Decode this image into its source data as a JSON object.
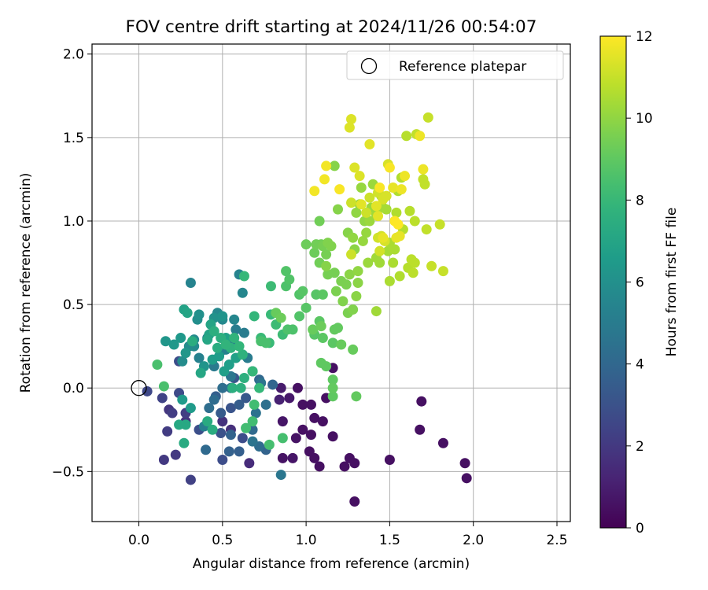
{
  "chart_data": {
    "type": "scatter",
    "title": "FOV centre drift starting at 2024/11/26 00:54:07",
    "xlabel": "Angular distance from reference (arcmin)",
    "ylabel": "Rotation from reference (arcmin)",
    "xlim": [
      -0.28,
      2.58
    ],
    "ylim": [
      -0.8,
      2.06
    ],
    "xticks": [
      0.0,
      0.5,
      1.0,
      1.5,
      2.0,
      2.5
    ],
    "xtick_labels": [
      "0.0",
      "0.5",
      "1.0",
      "1.5",
      "2.0",
      "2.5"
    ],
    "yticks": [
      -0.5,
      0.0,
      0.5,
      1.0,
      1.5,
      2.0
    ],
    "ytick_labels": [
      "−0.5",
      "0.0",
      "0.5",
      "1.0",
      "1.5",
      "2.0"
    ],
    "grid": true,
    "legend": {
      "position": "top-right",
      "entries": [
        "Reference platepar"
      ]
    },
    "reference_point": {
      "x": 0.0,
      "y": 0.0,
      "label": "Reference platepar"
    },
    "colorbar": {
      "label": "Hours from first FF file",
      "colormap": "viridis",
      "range": [
        0,
        12
      ],
      "ticks": [
        0,
        2,
        4,
        6,
        8,
        10,
        12
      ],
      "tick_labels": [
        "0",
        "2",
        "4",
        "6",
        "8",
        "10",
        "12"
      ]
    },
    "color_variable": "hours_from_first_ff_file",
    "points": [
      [
        0.95,
        0.0,
        0.5
      ],
      [
        0.98,
        -0.1,
        0.5
      ],
      [
        1.03,
        -0.1,
        0.5
      ],
      [
        1.05,
        -0.18,
        0.5
      ],
      [
        1.1,
        -0.2,
        0.5
      ],
      [
        1.12,
        -0.06,
        0.5
      ],
      [
        1.16,
        0.12,
        0.5
      ],
      [
        0.98,
        -0.25,
        0.5
      ],
      [
        1.03,
        -0.28,
        0.5
      ],
      [
        1.16,
        -0.29,
        0.5
      ],
      [
        1.02,
        -0.38,
        0.5
      ],
      [
        1.05,
        -0.42,
        0.5
      ],
      [
        1.08,
        -0.47,
        0.5
      ],
      [
        1.23,
        -0.47,
        0.5
      ],
      [
        1.26,
        -0.42,
        0.5
      ],
      [
        1.29,
        -0.45,
        0.5
      ],
      [
        1.29,
        -0.68,
        0.5
      ],
      [
        1.5,
        -0.43,
        0.5
      ],
      [
        1.68,
        -0.25,
        0.5
      ],
      [
        1.69,
        -0.08,
        0.5
      ],
      [
        1.82,
        -0.33,
        0.5
      ],
      [
        1.95,
        -0.45,
        0.5
      ],
      [
        1.96,
        -0.54,
        0.5
      ],
      [
        0.86,
        -0.42,
        0.6
      ],
      [
        0.94,
        -0.3,
        0.6
      ],
      [
        0.86,
        -0.2,
        0.7
      ],
      [
        0.92,
        -0.42,
        0.7
      ],
      [
        0.9,
        -0.06,
        0.8
      ],
      [
        0.85,
        0.0,
        0.9
      ],
      [
        0.84,
        -0.07,
        1.1
      ],
      [
        0.66,
        -0.45,
        1.5
      ],
      [
        0.55,
        -0.25,
        1.6
      ],
      [
        0.5,
        -0.2,
        1.7
      ],
      [
        0.28,
        -0.2,
        1.8
      ],
      [
        0.18,
        -0.13,
        1.9
      ],
      [
        0.15,
        -0.43,
        2.0
      ],
      [
        0.22,
        -0.4,
        2.0
      ],
      [
        0.17,
        -0.26,
        2.1
      ],
      [
        0.2,
        -0.15,
        2.2
      ],
      [
        0.28,
        -0.15,
        2.2
      ],
      [
        0.31,
        -0.55,
        2.3
      ],
      [
        0.14,
        -0.06,
        2.4
      ],
      [
        0.05,
        -0.02,
        2.6
      ],
      [
        0.24,
        -0.03,
        2.7
      ],
      [
        0.24,
        0.16,
        2.8
      ],
      [
        0.5,
        -0.43,
        2.8
      ],
      [
        0.62,
        -0.3,
        2.8
      ],
      [
        0.36,
        -0.25,
        2.9
      ],
      [
        0.49,
        -0.27,
        3.0
      ],
      [
        0.55,
        -0.12,
        3.1
      ],
      [
        0.57,
        0.06,
        3.2
      ],
      [
        0.64,
        -0.06,
        3.3
      ],
      [
        0.49,
        -0.15,
        3.4
      ],
      [
        0.6,
        -0.1,
        3.5
      ],
      [
        0.46,
        -0.05,
        3.6
      ],
      [
        0.6,
        -0.38,
        3.6
      ],
      [
        0.54,
        -0.38,
        3.7
      ],
      [
        0.55,
        -0.28,
        3.8
      ],
      [
        0.76,
        -0.37,
        3.8
      ],
      [
        0.8,
        0.02,
        3.9
      ],
      [
        0.72,
        0.05,
        4.0
      ],
      [
        0.4,
        -0.37,
        4.1
      ],
      [
        0.68,
        -0.25,
        4.1
      ],
      [
        0.72,
        -0.35,
        4.2
      ],
      [
        0.45,
        -0.07,
        4.2
      ],
      [
        0.42,
        -0.12,
        4.3
      ],
      [
        0.5,
        0.0,
        4.3
      ],
      [
        0.55,
        0.0,
        4.4
      ],
      [
        0.76,
        -0.1,
        4.4
      ],
      [
        0.7,
        -0.15,
        4.5
      ],
      [
        0.68,
        0.1,
        4.5
      ],
      [
        0.73,
        0.03,
        4.6
      ],
      [
        0.68,
        -0.32,
        4.6
      ],
      [
        0.85,
        -0.52,
        4.7
      ],
      [
        0.55,
        0.07,
        4.7
      ],
      [
        0.49,
        0.22,
        4.8
      ],
      [
        0.62,
        0.2,
        4.8
      ],
      [
        0.57,
        0.27,
        4.9
      ],
      [
        0.45,
        0.13,
        4.9
      ],
      [
        0.65,
        0.18,
        5.0
      ],
      [
        0.63,
        0.33,
        5.0
      ],
      [
        0.58,
        0.35,
        5.1
      ],
      [
        0.39,
        -0.23,
        5.2
      ],
      [
        0.41,
        0.3,
        5.2
      ],
      [
        0.36,
        0.18,
        5.3
      ],
      [
        0.52,
        0.23,
        5.3
      ],
      [
        0.31,
        0.63,
        5.4
      ],
      [
        0.6,
        0.68,
        5.4
      ],
      [
        0.62,
        0.57,
        5.5
      ],
      [
        0.57,
        0.41,
        5.5
      ],
      [
        0.5,
        0.41,
        5.6
      ],
      [
        0.47,
        0.45,
        5.6
      ],
      [
        0.33,
        0.29,
        5.7
      ],
      [
        0.33,
        0.25,
        5.7
      ],
      [
        0.3,
        0.25,
        5.8
      ],
      [
        0.26,
        0.16,
        5.8
      ],
      [
        0.35,
        0.41,
        5.9
      ],
      [
        0.36,
        0.44,
        6.0
      ],
      [
        0.45,
        0.42,
        6.1
      ],
      [
        0.5,
        0.43,
        6.2
      ],
      [
        0.39,
        0.13,
        6.2
      ],
      [
        0.28,
        0.21,
        6.3
      ],
      [
        0.16,
        0.28,
        6.3
      ],
      [
        0.25,
        0.3,
        6.4
      ],
      [
        0.21,
        0.26,
        6.4
      ],
      [
        0.26,
        -0.07,
        6.5
      ],
      [
        0.31,
        -0.12,
        6.5
      ],
      [
        0.44,
        0.17,
        6.6
      ],
      [
        0.48,
        0.19,
        6.6
      ],
      [
        0.51,
        0.1,
        6.7
      ],
      [
        0.54,
        0.14,
        6.7
      ],
      [
        0.58,
        0.18,
        6.8
      ],
      [
        0.52,
        0.3,
        6.8
      ],
      [
        0.42,
        0.32,
        6.9
      ],
      [
        0.27,
        0.47,
        6.9
      ],
      [
        0.29,
        0.45,
        7.0
      ],
      [
        0.43,
        0.38,
        7.0
      ],
      [
        0.41,
        0.29,
        7.1
      ],
      [
        0.37,
        0.09,
        7.1
      ],
      [
        0.28,
        -0.22,
        7.2
      ],
      [
        0.24,
        -0.22,
        7.2
      ],
      [
        0.27,
        -0.33,
        7.3
      ],
      [
        0.41,
        -0.2,
        7.3
      ],
      [
        0.44,
        -0.25,
        7.4
      ],
      [
        0.47,
        0.24,
        7.4
      ],
      [
        0.32,
        0.28,
        7.4
      ],
      [
        0.49,
        0.3,
        7.5
      ],
      [
        0.45,
        0.34,
        7.5
      ],
      [
        0.56,
        0.0,
        7.5
      ],
      [
        0.61,
        0.0,
        7.6
      ],
      [
        0.63,
        0.06,
        7.6
      ],
      [
        0.62,
        0.2,
        7.7
      ],
      [
        0.55,
        0.24,
        7.7
      ],
      [
        0.57,
        0.3,
        7.8
      ],
      [
        0.52,
        0.26,
        7.8
      ],
      [
        0.6,
        0.25,
        7.9
      ],
      [
        0.69,
        0.43,
        7.9
      ],
      [
        0.63,
        0.67,
        8.0
      ],
      [
        0.68,
        0.1,
        8.0
      ],
      [
        0.72,
        0.0,
        8.0
      ],
      [
        0.73,
        0.3,
        8.1
      ],
      [
        0.78,
        0.27,
        8.1
      ],
      [
        0.79,
        0.44,
        8.1
      ],
      [
        0.82,
        0.38,
        8.2
      ],
      [
        0.86,
        0.32,
        8.2
      ],
      [
        0.79,
        0.61,
        8.2
      ],
      [
        0.69,
        -0.1,
        8.3
      ],
      [
        0.68,
        -0.2,
        8.3
      ],
      [
        0.64,
        -0.24,
        8.3
      ],
      [
        0.78,
        -0.34,
        8.4
      ],
      [
        0.86,
        -0.3,
        8.4
      ],
      [
        0.11,
        0.14,
        8.5
      ],
      [
        0.15,
        0.01,
        8.5
      ],
      [
        0.76,
        0.27,
        8.5
      ],
      [
        0.73,
        0.28,
        8.5
      ],
      [
        0.89,
        0.35,
        8.6
      ],
      [
        0.92,
        0.35,
        8.6
      ],
      [
        0.88,
        0.61,
        8.6
      ],
      [
        0.9,
        0.65,
        8.7
      ],
      [
        0.88,
        0.7,
        8.7
      ],
      [
        0.96,
        0.43,
        8.7
      ],
      [
        0.96,
        0.56,
        8.7
      ],
      [
        1.0,
        0.48,
        8.8
      ],
      [
        0.98,
        0.58,
        8.8
      ],
      [
        1.05,
        0.32,
        8.8
      ],
      [
        1.06,
        0.56,
        8.8
      ],
      [
        1.08,
        0.4,
        8.9
      ],
      [
        1.1,
        0.56,
        8.9
      ],
      [
        1.1,
        0.3,
        8.9
      ],
      [
        1.16,
        0.27,
        8.9
      ],
      [
        1.09,
        0.15,
        9.0
      ],
      [
        1.12,
        0.13,
        9.0
      ],
      [
        1.16,
        0.05,
        9.0
      ],
      [
        1.16,
        -0.05,
        9.0
      ],
      [
        1.16,
        0.0,
        9.1
      ],
      [
        1.17,
        0.35,
        9.1
      ],
      [
        1.19,
        0.36,
        9.1
      ],
      [
        1.3,
        -0.05,
        9.1
      ],
      [
        1.21,
        0.26,
        9.2
      ],
      [
        1.28,
        0.23,
        9.2
      ],
      [
        0.82,
        0.45,
        9.2
      ],
      [
        1.04,
        0.35,
        9.2
      ],
      [
        1.09,
        0.37,
        9.3
      ],
      [
        0.85,
        0.42,
        9.3
      ],
      [
        1.0,
        0.86,
        9.3
      ],
      [
        1.05,
        0.81,
        9.3
      ],
      [
        1.06,
        0.86,
        9.4
      ],
      [
        1.08,
        0.75,
        9.4
      ],
      [
        1.09,
        0.86,
        9.4
      ],
      [
        1.08,
        1.0,
        9.4
      ],
      [
        1.1,
        0.85,
        9.5
      ],
      [
        1.12,
        0.8,
        9.5
      ],
      [
        1.13,
        0.68,
        9.5
      ],
      [
        1.17,
        0.69,
        9.5
      ],
      [
        1.21,
        0.64,
        9.6
      ],
      [
        1.24,
        0.62,
        9.6
      ],
      [
        1.18,
        0.58,
        9.6
      ],
      [
        1.25,
        0.45,
        9.6
      ],
      [
        1.28,
        0.47,
        9.7
      ],
      [
        1.22,
        0.52,
        9.7
      ],
      [
        1.13,
        0.87,
        9.7
      ],
      [
        1.15,
        0.85,
        9.7
      ],
      [
        1.17,
        1.33,
        9.8
      ],
      [
        1.19,
        1.07,
        9.8
      ],
      [
        1.25,
        0.93,
        9.8
      ],
      [
        1.12,
        0.73,
        9.8
      ],
      [
        1.26,
        0.68,
        9.9
      ],
      [
        1.29,
        0.83,
        9.9
      ],
      [
        1.3,
        0.55,
        9.9
      ],
      [
        1.31,
        0.63,
        9.9
      ],
      [
        1.28,
        0.9,
        10.0
      ],
      [
        1.3,
        1.05,
        10.0
      ],
      [
        1.35,
        1.0,
        10.0
      ],
      [
        1.31,
        0.7,
        10.0
      ],
      [
        1.32,
        1.1,
        10.1
      ],
      [
        1.33,
        1.2,
        10.1
      ],
      [
        1.34,
        0.88,
        10.1
      ],
      [
        1.36,
        0.93,
        10.1
      ],
      [
        1.37,
        0.75,
        10.2
      ],
      [
        1.38,
        1.0,
        10.2
      ],
      [
        1.39,
        1.08,
        10.2
      ],
      [
        1.4,
        1.22,
        10.2
      ],
      [
        1.42,
        0.46,
        10.3
      ],
      [
        1.42,
        1.04,
        10.3
      ],
      [
        1.42,
        0.78,
        10.3
      ],
      [
        1.44,
        0.75,
        10.3
      ],
      [
        1.45,
        1.15,
        10.4
      ],
      [
        1.46,
        1.08,
        10.4
      ],
      [
        1.48,
        1.07,
        10.4
      ],
      [
        1.49,
        0.82,
        10.4
      ],
      [
        1.5,
        0.64,
        10.5
      ],
      [
        1.5,
        0.87,
        10.5
      ],
      [
        1.52,
        0.75,
        10.5
      ],
      [
        1.53,
        0.83,
        10.5
      ],
      [
        1.54,
        1.05,
        10.6
      ],
      [
        1.55,
        1.18,
        10.6
      ],
      [
        1.56,
        0.67,
        10.6
      ],
      [
        1.57,
        1.26,
        10.6
      ],
      [
        1.58,
        0.95,
        10.7
      ],
      [
        1.6,
        1.51,
        10.7
      ],
      [
        1.61,
        0.72,
        10.7
      ],
      [
        1.62,
        1.06,
        10.7
      ],
      [
        1.63,
        0.77,
        10.8
      ],
      [
        1.64,
        0.69,
        10.8
      ],
      [
        1.65,
        0.75,
        10.8
      ],
      [
        1.65,
        1.0,
        10.8
      ],
      [
        1.66,
        1.52,
        10.9
      ],
      [
        1.7,
        1.25,
        10.9
      ],
      [
        1.71,
        1.22,
        10.9
      ],
      [
        1.72,
        0.95,
        10.9
      ],
      [
        1.73,
        1.62,
        11.0
      ],
      [
        1.75,
        0.73,
        11.0
      ],
      [
        1.8,
        0.98,
        11.0
      ],
      [
        1.82,
        0.7,
        11.0
      ],
      [
        1.27,
        0.8,
        11.1
      ],
      [
        1.27,
        1.11,
        11.1
      ],
      [
        1.36,
        1.05,
        11.1
      ],
      [
        1.38,
        1.14,
        11.1
      ],
      [
        1.43,
        1.17,
        11.2
      ],
      [
        1.43,
        0.9,
        11.2
      ],
      [
        1.44,
        0.82,
        11.2
      ],
      [
        1.45,
        0.91,
        11.2
      ],
      [
        1.46,
        1.13,
        11.3
      ],
      [
        1.47,
        0.88,
        11.3
      ],
      [
        1.48,
        1.15,
        11.3
      ],
      [
        1.49,
        1.34,
        11.3
      ],
      [
        1.26,
        1.56,
        11.4
      ],
      [
        1.27,
        1.61,
        11.4
      ],
      [
        1.29,
        1.32,
        11.4
      ],
      [
        1.32,
        1.27,
        11.4
      ],
      [
        1.33,
        1.1,
        11.5
      ],
      [
        1.38,
        1.46,
        11.5
      ],
      [
        1.42,
        1.09,
        11.5
      ],
      [
        1.43,
        1.03,
        11.5
      ],
      [
        1.46,
        0.9,
        11.6
      ],
      [
        1.52,
        1.2,
        11.6
      ],
      [
        1.54,
        0.9,
        11.6
      ],
      [
        1.56,
        0.91,
        11.6
      ],
      [
        1.57,
        1.19,
        11.7
      ],
      [
        1.59,
        1.27,
        11.7
      ],
      [
        1.68,
        1.51,
        11.7
      ],
      [
        1.7,
        1.31,
        11.7
      ],
      [
        1.05,
        1.18,
        11.8
      ],
      [
        1.11,
        1.25,
        11.8
      ],
      [
        1.12,
        1.33,
        11.8
      ],
      [
        1.2,
        1.19,
        11.9
      ],
      [
        1.44,
        1.2,
        11.9
      ],
      [
        1.5,
        1.32,
        11.9
      ],
      [
        1.53,
        1.0,
        12.0
      ],
      [
        1.55,
        0.98,
        12.0
      ]
    ]
  }
}
